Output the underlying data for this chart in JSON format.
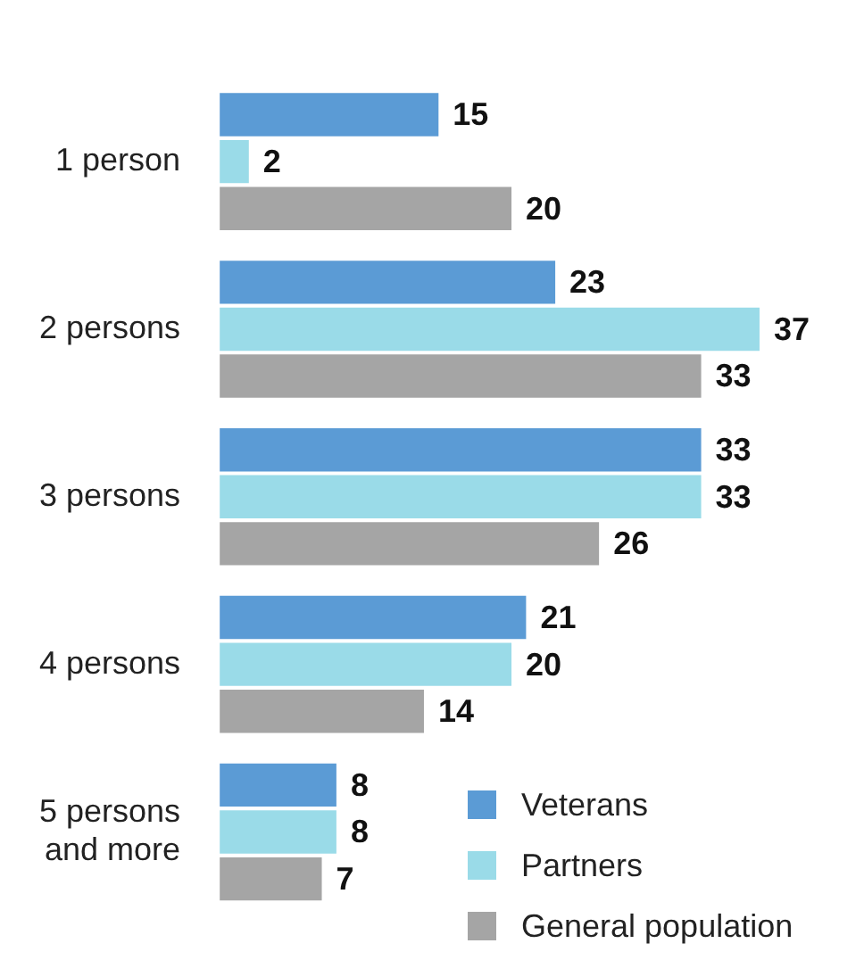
{
  "chart_data": {
    "type": "bar",
    "orientation": "horizontal",
    "categories": [
      "1 person",
      "2 persons",
      "3 persons",
      "4 persons",
      "5 persons and more"
    ],
    "series": [
      {
        "name": "Veterans",
        "color": "#5b9bd5",
        "values": [
          15,
          23,
          33,
          21,
          8
        ]
      },
      {
        "name": "Partners",
        "color": "#9adbe8",
        "values": [
          2,
          37,
          33,
          20,
          8
        ]
      },
      {
        "name": "General population",
        "color": "#a5a5a5",
        "values": [
          20,
          33,
          26,
          14,
          7
        ]
      }
    ],
    "tick_labels": "y",
    "data_labels": true,
    "legend": "bottom right"
  }
}
